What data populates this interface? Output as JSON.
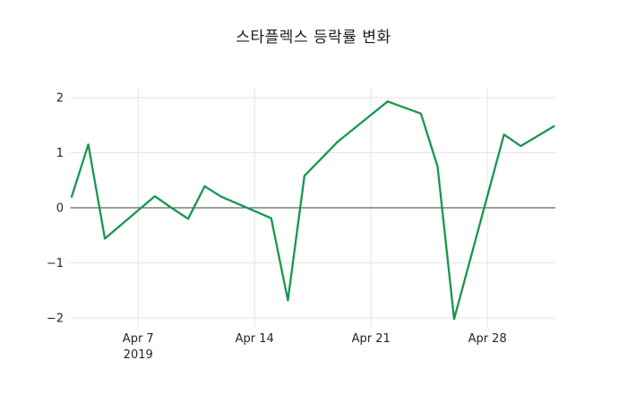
{
  "chart_data": {
    "type": "line",
    "title": "스타플렉스 등락률 변화",
    "xlabel": "",
    "ylabel": "",
    "grid": "on",
    "legend": "none",
    "zero_line": true,
    "x_unit": "date (April 2019, business days; day 32 = May 2)",
    "x_range_days": [
      3,
      32
    ],
    "ylim": [
      -2.18,
      2.18
    ],
    "colors": {
      "line": "#17964f",
      "grid": "#e6e6e6",
      "zero_line": "#3c3c3c",
      "text": "#262626",
      "background": "#ffffff"
    },
    "x_ticks": [
      {
        "label": "Apr 7",
        "day": 7,
        "sublabel": "2019"
      },
      {
        "label": "Apr 14",
        "day": 14,
        "sublabel": ""
      },
      {
        "label": "Apr 21",
        "day": 21,
        "sublabel": ""
      },
      {
        "label": "Apr 28",
        "day": 28,
        "sublabel": ""
      }
    ],
    "y_ticks": [
      {
        "label": "2",
        "value": 2
      },
      {
        "label": "1",
        "value": 1
      },
      {
        "label": "0",
        "value": 0
      },
      {
        "label": "−1",
        "value": -1
      },
      {
        "label": "−2",
        "value": -2
      }
    ],
    "series": [
      {
        "name": "등락률 (%)",
        "color": "#17964f",
        "points": [
          {
            "date": "Apr 3",
            "day": 3,
            "value": 0.2
          },
          {
            "date": "Apr 4",
            "day": 4,
            "value": 1.15
          },
          {
            "date": "Apr 5",
            "day": 5,
            "value": -0.56
          },
          {
            "date": "Apr 8",
            "day": 8,
            "value": 0.21
          },
          {
            "date": "Apr 9",
            "day": 9,
            "value": 0.0
          },
          {
            "date": "Apr 10",
            "day": 10,
            "value": -0.2
          },
          {
            "date": "Apr 11",
            "day": 11,
            "value": 0.39
          },
          {
            "date": "Apr 12",
            "day": 12,
            "value": 0.2
          },
          {
            "date": "Apr 15",
            "day": 15,
            "value": -0.19
          },
          {
            "date": "Apr 16",
            "day": 16,
            "value": -1.68
          },
          {
            "date": "Apr 17",
            "day": 17,
            "value": 0.58
          },
          {
            "date": "Apr 18",
            "day": 18,
            "value": 0.89
          },
          {
            "date": "Apr 19",
            "day": 19,
            "value": 1.2
          },
          {
            "date": "Apr 22",
            "day": 22,
            "value": 1.93
          },
          {
            "date": "Apr 23",
            "day": 23,
            "value": 1.82
          },
          {
            "date": "Apr 24",
            "day": 24,
            "value": 1.71
          },
          {
            "date": "Apr 25",
            "day": 25,
            "value": 0.75
          },
          {
            "date": "Apr 26",
            "day": 26,
            "value": -2.02
          },
          {
            "date": "Apr 29",
            "day": 29,
            "value": 1.33
          },
          {
            "date": "Apr 30",
            "day": 30,
            "value": 1.12
          },
          {
            "date": "May 2",
            "day": 32,
            "value": 1.48
          }
        ]
      }
    ]
  }
}
